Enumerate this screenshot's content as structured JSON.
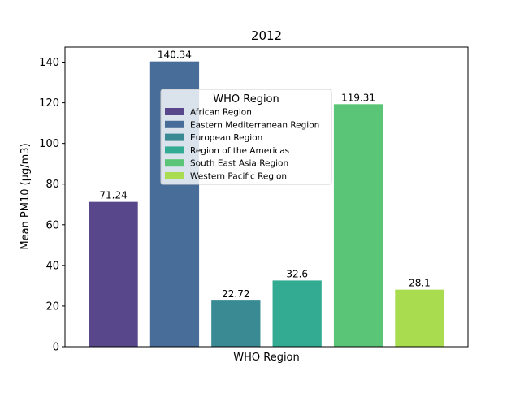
{
  "chart_data": {
    "type": "bar",
    "title": "2012",
    "xlabel": "WHO Region",
    "ylabel": "Mean PM10 (μg/m3)",
    "ylim": [
      0,
      147.4
    ],
    "yticks": [
      0,
      20,
      40,
      60,
      80,
      100,
      120,
      140
    ],
    "categories": [
      "African Region",
      "Eastern Mediterranean Region",
      "European Region",
      "Region of the Americas",
      "South East Asia Region",
      "Western Pacific Region"
    ],
    "values": [
      71.24,
      140.34,
      22.72,
      32.6,
      119.31,
      28.1
    ],
    "value_labels": [
      "71.24",
      "140.34",
      "22.72",
      "32.6",
      "119.31",
      "28.1"
    ],
    "colors": [
      "#58478b",
      "#496d99",
      "#3a8a93",
      "#33ab93",
      "#5bc577",
      "#a9dc4e"
    ],
    "legend": {
      "title": "WHO Region",
      "placement": "upper-center"
    },
    "grid": false
  }
}
